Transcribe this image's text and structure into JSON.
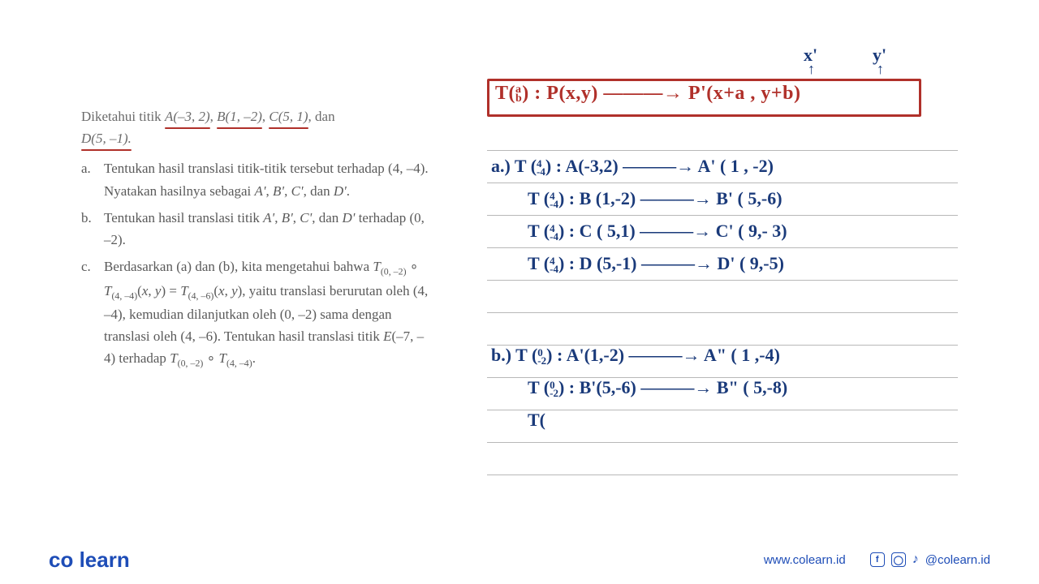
{
  "problem": {
    "intro_prefix": "Diketahui titik ",
    "points": [
      "A(–3, 2)",
      "B(1, –2)",
      "C(5, 1)"
    ],
    "intro_suffix": ", dan",
    "last_point": "D(5, –1).",
    "items": [
      {
        "label": "a.",
        "text": "Tentukan hasil translasi titik-titik tersebut terhadap (4, –4). Nyatakan hasilnya sebagai A', B', C', dan D'."
      },
      {
        "label": "b.",
        "text": "Tentukan hasil translasi titik A', B', C', dan D' terhadap (0, –2)."
      },
      {
        "label": "c.",
        "text_html": "Berdasarkan (a) dan (b), kita mengetahui bahwa T₍₀, ₋₂₎ ∘ T₍₄, ₋₄₎(x, y) = T₍₄, ₋₆₎(x, y), yaitu translasi berurutan oleh (4, –4), kemudian dilanjutkan oleh (0, –2) sama dengan translasi oleh (4, –6). Tentukan hasil translasi titik E(–7, –4) terhadap T₍₀, ₋₂₎ ∘ T₍₄, ₋₄₎."
      }
    ]
  },
  "handwriting": {
    "x_label": "x'",
    "y_label": "y'",
    "formula": "T(ᵃ⁄ᵇ): P(x,y) ——→ P'(x+a, y+b)",
    "lines_a": [
      "a.) T(⁴₋₄): A(-3,2) ——→ A'(1,-2)",
      "T(⁴₋₄): B(1,-2) ——→ B'(5,-6)",
      "T(⁴₋₄): C(5,1) ——→ C'(9,-3)",
      "T(⁴₋₄): D(5,-1) ——→ D'(9,-5)"
    ],
    "lines_b": [
      "b.) T(⁰₋₂): A'(1,-2) ——→ A\"(1,-4)",
      "T(⁰₋₂): B'(5,-6) ——→ B\"(5,-8)",
      "T("
    ]
  },
  "ruled_lines_y": [
    185,
    225,
    265,
    305,
    345,
    385,
    425,
    465,
    505,
    545,
    585
  ],
  "footer": {
    "logo_co": "co",
    "logo_learn": "learn",
    "url": "www.colearn.id",
    "handle": "@colearn.id"
  },
  "colors": {
    "blue_ink": "#1a3a7a",
    "red_ink": "#b0302a",
    "text_gray": "#6b6b6b",
    "brand_blue": "#1e4db7",
    "rule": "#b8b8b8"
  }
}
